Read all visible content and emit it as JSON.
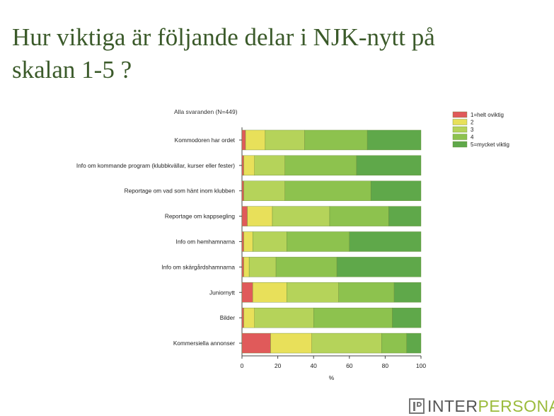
{
  "slide": {
    "title_line1": "Hur viktiga är följande delar i NJK-nytt på",
    "title_line2": "skalan 1-5 ?"
  },
  "logo": {
    "part1": "INTER",
    "part2": "PERSONA"
  },
  "chart_data": {
    "type": "bar",
    "orientation": "horizontal",
    "stacked": true,
    "subtitle": "Alla svaranden (N=449)",
    "xlabel": "%",
    "ylabel": "",
    "xlim": [
      0,
      100
    ],
    "xticks": [
      0,
      20,
      40,
      60,
      80,
      100
    ],
    "grid": false,
    "legend_position": "top-right",
    "categories": [
      "Kommodoren har ordet",
      "Info om kommande program (klubbkvällar, kurser eller fester)",
      "Reportage om vad som hänt inom klubben",
      "Reportage om kappsegling",
      "Info om hemhamnarna",
      "Info om skärgårdshamnarna",
      "Juniornytt",
      "Bilder",
      "Kommersiella annonser"
    ],
    "series": [
      {
        "name": "1=helt oviktig",
        "color": "#e05a5a",
        "values": [
          2,
          1,
          1,
          3,
          1,
          1,
          6,
          1,
          16
        ]
      },
      {
        "name": "2",
        "color": "#e8e05a",
        "values": [
          11,
          6,
          0,
          14,
          5,
          3,
          19,
          6,
          23
        ]
      },
      {
        "name": "3",
        "color": "#b5d35a",
        "values": [
          22,
          17,
          23,
          32,
          19,
          15,
          29,
          33,
          39
        ]
      },
      {
        "name": "4",
        "color": "#8dc24e",
        "values": [
          35,
          40,
          48,
          33,
          35,
          34,
          31,
          44,
          14
        ]
      },
      {
        "name": "5=mycket viktig",
        "color": "#5fa84a",
        "values": [
          30,
          36,
          28,
          18,
          40,
          47,
          15,
          16,
          8
        ]
      }
    ]
  }
}
